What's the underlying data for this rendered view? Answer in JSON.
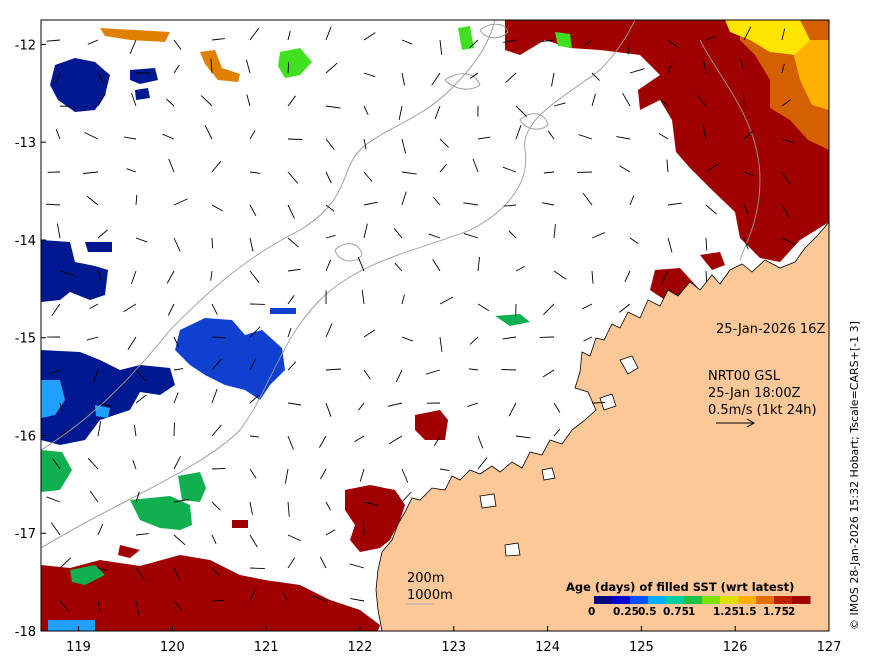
{
  "map": {
    "x_ticks": [
      "119",
      "120",
      "121",
      "122",
      "123",
      "124",
      "125",
      "126",
      "127"
    ],
    "y_ticks": [
      "-12",
      "-13",
      "-14",
      "-15",
      "-16",
      "-17",
      "-18"
    ],
    "x_range": [
      118.6,
      127.0
    ],
    "y_range": [
      -18.0,
      -11.75
    ]
  },
  "annotations": {
    "date_stamp": "25-Jan-2026 16Z",
    "current_source": "NRT00 GSL",
    "current_time": "25-Jan 18:00Z",
    "current_scale": "0.5m/s (1kt 24h)",
    "isobath_200": "200m",
    "isobath_1000": "1000m"
  },
  "credit": "© IMOS 28-Jan-2026 15:32 Hobart; Tscale=CARS+[-1 3]",
  "legend": {
    "title": "Age (days) of filled SST (wrt latest)",
    "ticks": [
      "0",
      "0.25",
      "0.5",
      "0.75",
      "1",
      "1.25",
      "1.5",
      "1.75",
      "2"
    ],
    "colors": [
      "#000080",
      "#0000d0",
      "#0050ff",
      "#00b0ff",
      "#00d0a0",
      "#20c040",
      "#80e000",
      "#e0e000",
      "#ffb000",
      "#e07000",
      "#c02000",
      "#a00000"
    ]
  },
  "colors": {
    "land": "#fcc897",
    "age_recent": "#a00000",
    "age_orange": "#d46000",
    "age_yellow": "#ffe400",
    "age_blue": "#1030c0",
    "age_navy": "#001890",
    "age_green": "#10b050"
  }
}
